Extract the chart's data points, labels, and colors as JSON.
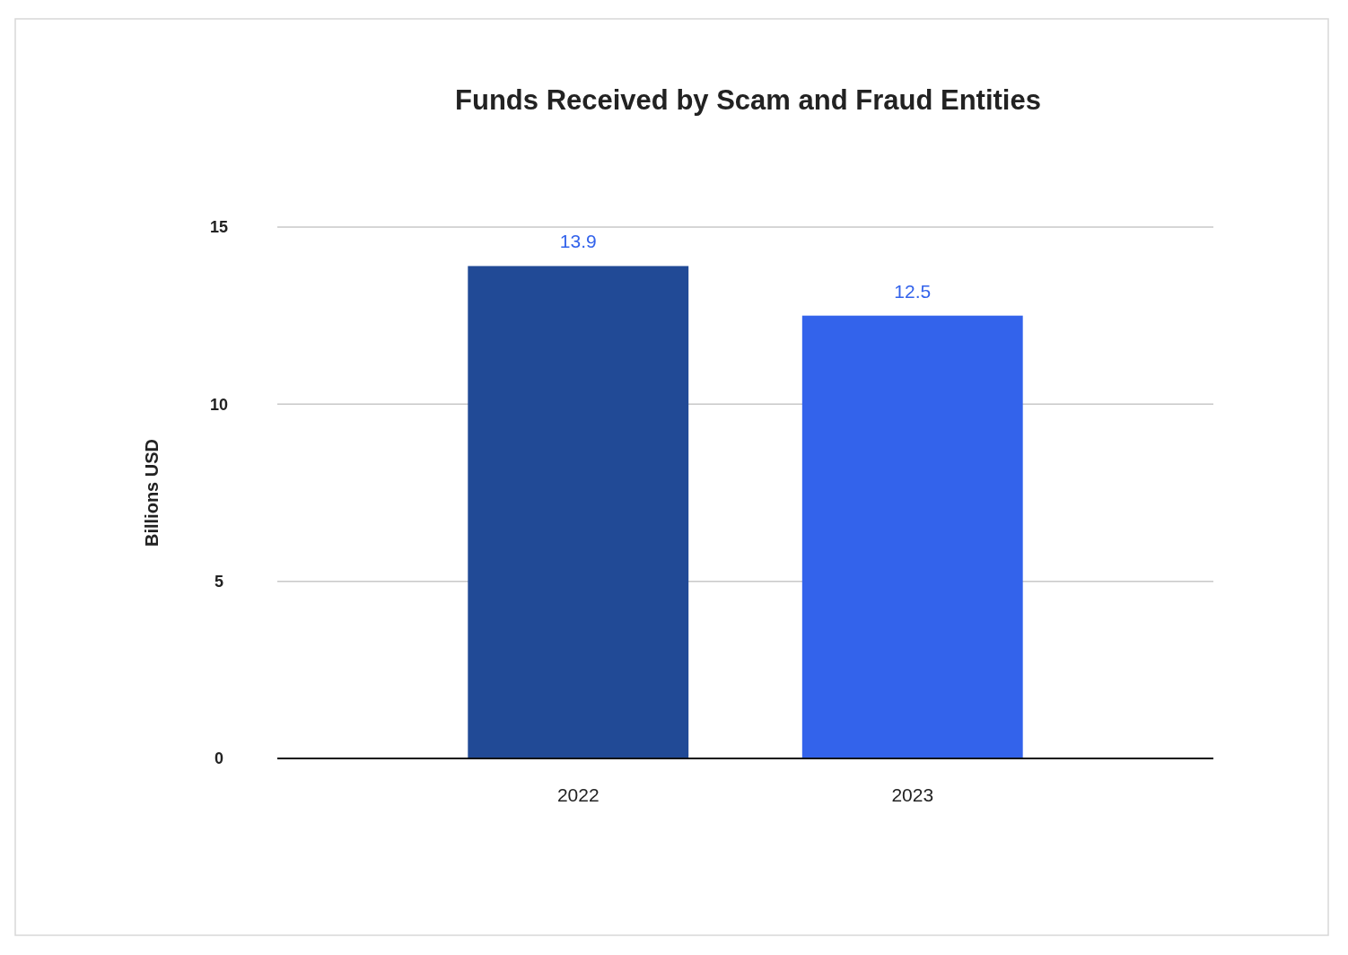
{
  "chart_data": {
    "type": "bar",
    "title": "Funds Received by Scam and Fraud Entities",
    "ylabel": "Billions USD",
    "categories": [
      "2022",
      "2023"
    ],
    "values": [
      13.9,
      12.5
    ],
    "colors": [
      "#214a96",
      "#3363eb"
    ],
    "ylim": [
      0,
      15
    ],
    "yticks": [
      0,
      5,
      10,
      15
    ],
    "grid": "y",
    "data_labels": true
  }
}
